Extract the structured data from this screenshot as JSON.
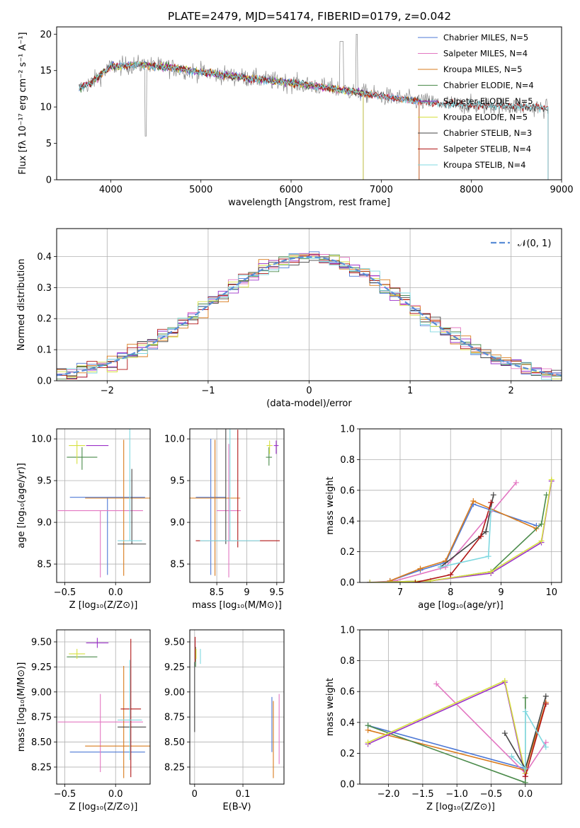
{
  "figure_title": "PLATE=2479, MJD=54174, FIBERID=0179, z=0.042",
  "colors": [
    "#4e79d6",
    "#e377c2",
    "#d97b1c",
    "#4a8a4a",
    "#9b30c9",
    "#d6e040",
    "#444444",
    "#b01515",
    "#7fd8e0"
  ],
  "chart_data": [
    {
      "id": "spectrum",
      "type": "line",
      "xlabel": "wavelength [Angstrom, rest frame]",
      "ylabel": "Flux [fλ 10⁻¹⁷ erg cm⁻² s⁻¹ A⁻¹]",
      "xlim": [
        3400,
        9000
      ],
      "ylim": [
        0,
        21
      ],
      "xticks": [
        4000,
        5000,
        6000,
        7000,
        8000,
        9000
      ],
      "yticks": [
        0,
        5,
        10,
        15,
        20
      ],
      "legend_position": "upper-right",
      "data_continuum": [
        [
          3650,
          12.5
        ],
        [
          3800,
          13.5
        ],
        [
          4000,
          15.5
        ],
        [
          4300,
          15.8
        ],
        [
          4600,
          15.5
        ],
        [
          5000,
          14.8
        ],
        [
          5500,
          14.0
        ],
        [
          6000,
          13.3
        ],
        [
          6500,
          12.5
        ],
        [
          7000,
          11.5
        ],
        [
          7400,
          10.8
        ],
        [
          7800,
          10.3
        ],
        [
          8200,
          10.2
        ],
        [
          8600,
          10.0
        ],
        [
          8850,
          9.8
        ]
      ],
      "series": [
        {
          "name": "Chabrier MILES, N_SSP=5",
          "x_range": [
            3650,
            7420
          ]
        },
        {
          "name": "Salpeter MILES, N_SSP=4",
          "x_range": [
            3650,
            7420
          ]
        },
        {
          "name": "Kroupa MILES, N_SSP=5",
          "x_range": [
            3650,
            7420
          ]
        },
        {
          "name": "Chabrier ELODIE, N_SSP=4",
          "x_range": [
            3650,
            6800
          ]
        },
        {
          "name": "Salpeter ELODIE, N_SSP=5",
          "x_range": [
            3900,
            6800
          ]
        },
        {
          "name": "Kroupa ELODIE, N_SSP=5",
          "x_range": [
            3900,
            6800
          ]
        },
        {
          "name": "Chabrier STELIB, N_SSP=3",
          "x_range": [
            3650,
            8850
          ]
        },
        {
          "name": "Salpeter STELIB, N_SSP=4",
          "x_range": [
            3650,
            8850
          ]
        },
        {
          "name": "Kroupa STELIB, N_SSP=4",
          "x_range": [
            3650,
            8850
          ]
        }
      ]
    },
    {
      "id": "residuals",
      "type": "step",
      "xlabel": "(data-model)/error",
      "ylabel": "Normed distribution",
      "xlim": [
        -2.5,
        2.5
      ],
      "ylim": [
        0,
        0.49
      ],
      "xticks": [
        -2,
        -1,
        0,
        1,
        2
      ],
      "yticks": [
        0.0,
        0.1,
        0.2,
        0.3,
        0.4
      ],
      "grid": true,
      "legend": "𝒩(0, 1)",
      "legend_position": "upper-right",
      "normal_curve": {
        "mean": 0,
        "sigma": 1
      },
      "bin_width": 0.1
    },
    {
      "id": "age-vs-Z",
      "type": "errorbar",
      "xlabel": "Z [log₁₀(Z/Z⊙)]",
      "ylabel": "age  [log₁₀(age/yr)]",
      "xlim": [
        -0.58,
        0.34
      ],
      "ylim": [
        8.28,
        10.12
      ],
      "xticks": [
        -0.5,
        0.0
      ],
      "xticklabels": [
        "−0.5",
        "0.0"
      ],
      "yticks": [
        8.5,
        9.0,
        9.5,
        10.0
      ],
      "grid": true,
      "points": [
        {
          "s": 0,
          "x": -0.08,
          "y": 9.3,
          "xerr": 0.37,
          "yerr": [
            0.93,
            0.0
          ]
        },
        {
          "s": 1,
          "x": -0.15,
          "y": 9.14,
          "xerr": 0.42,
          "yerr": [
            0.8,
            0.0
          ]
        },
        {
          "s": 2,
          "x": 0.08,
          "y": 9.29,
          "xerr": 0.38,
          "yerr": [
            0.93,
            0.7
          ]
        },
        {
          "s": 3,
          "x": -0.33,
          "y": 9.78,
          "xerr": 0.15,
          "yerr": [
            0.15,
            0.12
          ]
        },
        {
          "s": 4,
          "x": -0.18,
          "y": 9.92,
          "xerr": 0.11,
          "yerr": [
            0.0,
            0.0
          ]
        },
        {
          "s": 5,
          "x": -0.38,
          "y": 9.92,
          "xerr": 0.08,
          "yerr": [
            0.22,
            0.06
          ]
        },
        {
          "s": 6,
          "x": 0.16,
          "y": 8.74,
          "xerr": 0.14,
          "yerr": [
            0.0,
            0.9
          ]
        },
        {
          "s": 7,
          "x": 0.2,
          "y": 9.28,
          "xerr": 0.0,
          "yerr": [
            0.0,
            0.0
          ]
        },
        {
          "s": 8,
          "x": 0.14,
          "y": 8.78,
          "xerr": 0.12,
          "yerr": [
            0.0,
            1.4
          ]
        }
      ]
    },
    {
      "id": "age-vs-mass",
      "type": "errorbar",
      "xlabel": "mass [log₁₀(M/M⊙)]",
      "xlim": [
        8.05,
        9.62
      ],
      "ylim": [
        8.28,
        10.12
      ],
      "xticks": [
        8.5,
        9.0,
        9.5
      ],
      "yticks": [
        8.5,
        9.0,
        9.5,
        10.0
      ],
      "grid": true,
      "points": [
        {
          "s": 0,
          "x": 8.4,
          "y": 9.3,
          "xerr": 0.25,
          "yerr": [
            0.93,
            0.7
          ]
        },
        {
          "s": 1,
          "x": 8.7,
          "y": 9.14,
          "xerr": 0.2,
          "yerr": [
            0.8,
            0.8
          ]
        },
        {
          "s": 2,
          "x": 8.47,
          "y": 9.29,
          "xerr": 0.42,
          "yerr": [
            0.93,
            0.7
          ]
        },
        {
          "s": 3,
          "x": 9.37,
          "y": 9.78,
          "xerr": 0.05,
          "yerr": [
            0.1,
            0.12
          ]
        },
        {
          "s": 4,
          "x": 9.49,
          "y": 9.92,
          "xerr": 0.04,
          "yerr": [
            0.1,
            0.06
          ]
        },
        {
          "s": 5,
          "x": 9.38,
          "y": 9.92,
          "xerr": 0.05,
          "yerr": [
            0.1,
            0.06
          ]
        },
        {
          "s": 6,
          "x": 8.65,
          "y": 8.74,
          "xerr": 0.0,
          "yerr": [
            0.0,
            1.4
          ]
        },
        {
          "s": 7,
          "x": 8.85,
          "y": 8.78,
          "xerr": 0.7,
          "yerr": [
            0.08,
            1.33
          ]
        },
        {
          "s": 8,
          "x": 8.72,
          "y": 8.78,
          "xerr": 0.5,
          "yerr": [
            0.0,
            1.4
          ]
        }
      ]
    },
    {
      "id": "mass-weight-vs-age",
      "type": "line",
      "xlabel": "age  [log₁₀(age/yr)]",
      "ylabel": "mass weight",
      "xlim": [
        6.2,
        10.2
      ],
      "ylim": [
        0.0,
        1.0
      ],
      "xticks": [
        7,
        8,
        9,
        10
      ],
      "yticks": [
        0.0,
        0.2,
        0.4,
        0.6,
        0.8,
        1.0
      ],
      "grid": true,
      "series": [
        {
          "s": 0,
          "x": [
            6.8,
            7.4,
            7.9,
            8.45,
            9.7
          ],
          "y": [
            0.01,
            0.08,
            0.13,
            0.51,
            0.37
          ]
        },
        {
          "s": 1,
          "x": [
            6.4,
            6.9,
            7.9,
            9.3
          ],
          "y": [
            0.0,
            0.01,
            0.1,
            0.65
          ]
        },
        {
          "s": 2,
          "x": [
            6.8,
            7.4,
            7.9,
            8.45,
            9.7
          ],
          "y": [
            0.01,
            0.09,
            0.14,
            0.53,
            0.35
          ]
        },
        {
          "s": 3,
          "x": [
            6.4,
            7.6,
            8.8,
            9.8,
            9.9
          ],
          "y": [
            0.0,
            0.01,
            0.07,
            0.38,
            0.57
          ]
        },
        {
          "s": 4,
          "x": [
            6.4,
            7.6,
            8.8,
            9.8,
            10.0
          ],
          "y": [
            0.0,
            0.01,
            0.06,
            0.26,
            0.66
          ]
        },
        {
          "s": 5,
          "x": [
            6.4,
            7.6,
            8.8,
            9.8,
            10.0
          ],
          "y": [
            0.0,
            0.01,
            0.07,
            0.27,
            0.67
          ]
        },
        {
          "s": 6,
          "x": [
            7.8,
            8.7,
            8.85
          ],
          "y": [
            0.1,
            0.33,
            0.57
          ]
        },
        {
          "s": 7,
          "x": [
            7.3,
            8.0,
            8.6,
            8.8
          ],
          "y": [
            0.0,
            0.05,
            0.3,
            0.52
          ]
        },
        {
          "s": 8,
          "x": [
            7.8,
            8.75,
            8.8
          ],
          "y": [
            0.1,
            0.17,
            0.47
          ]
        }
      ]
    },
    {
      "id": "mass-vs-Z",
      "type": "errorbar",
      "xlabel": "Z [log₁₀(Z/Z⊙)]",
      "ylabel": "mass [log₁₀(M/M⊙)]",
      "xlim": [
        -0.58,
        0.34
      ],
      "ylim": [
        8.08,
        9.62
      ],
      "xticks": [
        -0.5,
        0.0
      ],
      "xticklabels": [
        "−0.5",
        "0.0"
      ],
      "yticks": [
        8.25,
        8.5,
        8.75,
        9.0,
        9.25,
        9.5
      ],
      "grid": true,
      "points": [
        {
          "s": 0,
          "x": -0.08,
          "y": 8.4,
          "xerr": 0.37,
          "yerr": [
            0.0,
            0.0
          ]
        },
        {
          "s": 1,
          "x": -0.15,
          "y": 8.7,
          "xerr": 0.42,
          "yerr": [
            0.5,
            0.28
          ]
        },
        {
          "s": 2,
          "x": 0.08,
          "y": 8.46,
          "xerr": 0.38,
          "yerr": [
            0.32,
            0.8
          ]
        },
        {
          "s": 3,
          "x": -0.33,
          "y": 9.35,
          "xerr": 0.15,
          "yerr": [
            0.0,
            0.0
          ]
        },
        {
          "s": 4,
          "x": -0.18,
          "y": 9.49,
          "xerr": 0.11,
          "yerr": [
            0.05,
            0.05
          ]
        },
        {
          "s": 5,
          "x": -0.38,
          "y": 9.38,
          "xerr": 0.08,
          "yerr": [
            0.05,
            0.05
          ]
        },
        {
          "s": 6,
          "x": 0.16,
          "y": 8.65,
          "xerr": 0.14,
          "yerr": [
            0.0,
            0.0
          ]
        },
        {
          "s": 7,
          "x": 0.15,
          "y": 8.83,
          "xerr": 0.1,
          "yerr": [
            0.68,
            0.7
          ]
        },
        {
          "s": 8,
          "x": 0.14,
          "y": 8.72,
          "xerr": 0.12,
          "yerr": [
            0.4,
            0.6
          ]
        }
      ]
    },
    {
      "id": "mass-vs-EBV",
      "type": "errorbar",
      "xlabel": "E(B-V)",
      "xlim": [
        -0.01,
        0.185
      ],
      "ylim": [
        8.08,
        9.62
      ],
      "xticks": [
        0.0,
        0.1
      ],
      "yticks": [
        8.25,
        8.5,
        8.75,
        9.0,
        9.25,
        9.5
      ],
      "grid": true,
      "points": [
        {
          "s": 0,
          "x": 0.16,
          "y": 8.4,
          "xerr": 0.0,
          "yerr": [
            0.0,
            0.55
          ]
        },
        {
          "s": 1,
          "x": 0.175,
          "y": 8.7,
          "xerr": 0.0,
          "yerr": [
            0.42,
            0.28
          ]
        },
        {
          "s": 2,
          "x": 0.163,
          "y": 8.46,
          "xerr": 0.0,
          "yerr": [
            0.32,
            0.45
          ]
        },
        {
          "s": 3,
          "x": 0.002,
          "y": 9.35,
          "xerr": 0.0,
          "yerr": [
            0.1,
            0.1
          ]
        },
        {
          "s": 4,
          "x": 0.001,
          "y": 9.49,
          "xerr": 0.0,
          "yerr": [
            0.05,
            0.05
          ]
        },
        {
          "s": 5,
          "x": 0.003,
          "y": 9.38,
          "xerr": 0.0,
          "yerr": [
            0.05,
            0.05
          ]
        },
        {
          "s": 6,
          "x": 0.0,
          "y": 8.65,
          "xerr": 0.0,
          "yerr": [
            0.05,
            0.65
          ]
        },
        {
          "s": 7,
          "x": 0.001,
          "y": 9.4,
          "xerr": 0.0,
          "yerr": [
            0.1,
            0.15
          ]
        },
        {
          "s": 8,
          "x": 0.012,
          "y": 9.33,
          "xerr": 0.0,
          "yerr": [
            0.05,
            0.1
          ]
        }
      ]
    },
    {
      "id": "mass-weight-vs-Z",
      "type": "line",
      "xlabel": "Z [log₁₀(Z/Z⊙)]",
      "ylabel": "mass weight",
      "xlim": [
        -2.42,
        0.53
      ],
      "ylim": [
        0.0,
        1.0
      ],
      "xticks": [
        -2.0,
        -1.5,
        -1.0,
        -0.5,
        0.0
      ],
      "xticklabels": [
        "−2.0",
        "−1.5",
        "−1.0",
        "−0.5",
        "0.0"
      ],
      "yticks": [
        0.0,
        0.2,
        0.4,
        0.6,
        0.8,
        1.0
      ],
      "grid": true,
      "series": [
        {
          "s": 0,
          "x": [
            -2.3,
            0.0,
            0.3
          ],
          "y": [
            0.38,
            0.1,
            0.52
          ]
        },
        {
          "s": 1,
          "x": [
            -1.3,
            0.0,
            0.3
          ],
          "y": [
            0.65,
            0.07,
            0.27
          ]
        },
        {
          "s": 2,
          "x": [
            -2.3,
            0.0,
            0.3
          ],
          "y": [
            0.35,
            0.09,
            0.53
          ]
        },
        {
          "s": 3,
          "x": [
            -2.3,
            0.0,
            0.0
          ],
          "y": [
            0.38,
            0.01,
            0.56
          ]
        },
        {
          "s": 4,
          "x": [
            -2.3,
            -0.3,
            0.0
          ],
          "y": [
            0.26,
            0.66,
            0.05
          ]
        },
        {
          "s": 5,
          "x": [
            -2.3,
            -0.3,
            0.0
          ],
          "y": [
            0.27,
            0.67,
            0.07
          ]
        },
        {
          "s": 6,
          "x": [
            -0.3,
            0.0,
            0.3
          ],
          "y": [
            0.33,
            0.1,
            0.57
          ]
        },
        {
          "s": 7,
          "x": [
            0.0,
            0.3
          ],
          "y": [
            0.05,
            0.52
          ]
        },
        {
          "s": 8,
          "x": [
            -0.2,
            0.0,
            0.0,
            0.3
          ],
          "y": [
            0.18,
            0.1,
            0.47,
            0.24
          ]
        }
      ]
    }
  ]
}
